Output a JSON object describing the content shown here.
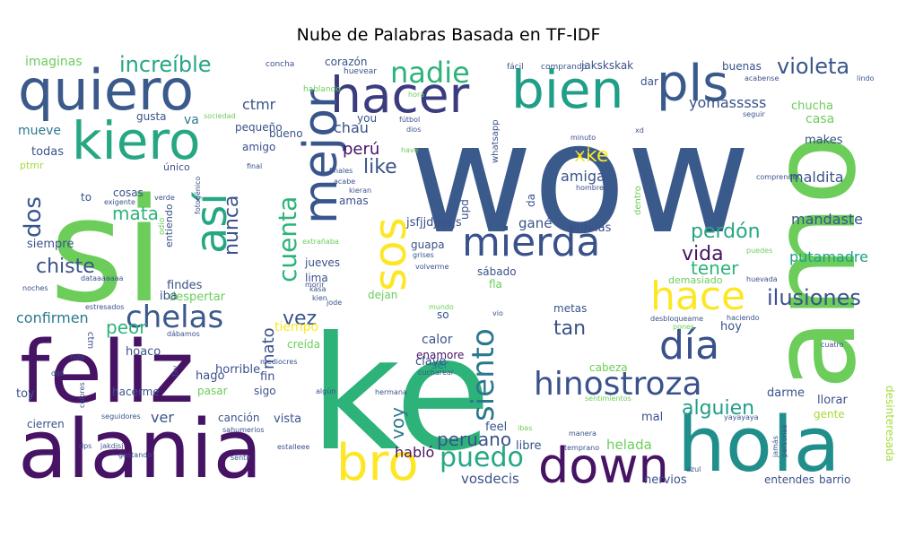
{
  "chart_data": {
    "type": "wordcloud",
    "title": "Nube de Palabras Basada en TF-IDF",
    "background": "#ffffff",
    "words": [
      {
        "text": "wow",
        "size": 170,
        "color": "#3b5a8c"
      },
      {
        "text": "ke",
        "size": 175,
        "color": "#2db37a"
      },
      {
        "text": "si",
        "size": 160,
        "color": "#6ccd5a"
      },
      {
        "text": "amo",
        "size": 130,
        "color": "#6ccd5a"
      },
      {
        "text": "feliz",
        "size": 95,
        "color": "#471365"
      },
      {
        "text": "alania",
        "size": 90,
        "color": "#471365"
      },
      {
        "text": "hola",
        "size": 85,
        "color": "#208f8c"
      },
      {
        "text": "quiero",
        "size": 62,
        "color": "#3b5a8c"
      },
      {
        "text": "kiero",
        "size": 58,
        "color": "#26a784"
      },
      {
        "text": "hacer",
        "size": 55,
        "color": "#3b3b80"
      },
      {
        "text": "bien",
        "size": 58,
        "color": "#1f9e88"
      },
      {
        "text": "pls",
        "size": 56,
        "color": "#3b5a8c"
      },
      {
        "text": "mejor",
        "size": 52,
        "color": "#39568c"
      },
      {
        "text": "así",
        "size": 48,
        "color": "#26a784"
      },
      {
        "text": "sos",
        "size": 50,
        "color": "#fde725"
      },
      {
        "text": "mierda",
        "size": 44,
        "color": "#3a528b"
      },
      {
        "text": "hace",
        "size": 44,
        "color": "#fde725"
      },
      {
        "text": "día",
        "size": 44,
        "color": "#3a528b"
      },
      {
        "text": "bro",
        "size": 56,
        "color": "#fde725"
      },
      {
        "text": "down",
        "size": 54,
        "color": "#471365"
      },
      {
        "text": "hinostroza",
        "size": 36,
        "color": "#3a528b"
      },
      {
        "text": "siento",
        "size": 34,
        "color": "#2a788e"
      },
      {
        "text": "chelas",
        "size": 34,
        "color": "#3b5a8c"
      },
      {
        "text": "nadie",
        "size": 32,
        "color": "#2db37a"
      },
      {
        "text": "increíble",
        "size": 24,
        "color": "#26a784"
      },
      {
        "text": "violeta",
        "size": 24,
        "color": "#39568c"
      },
      {
        "text": "cuenta",
        "size": 28,
        "color": "#2db37a"
      },
      {
        "text": "puedo",
        "size": 30,
        "color": "#26a784"
      },
      {
        "text": "ilusiones",
        "size": 24,
        "color": "#3a528b"
      },
      {
        "text": "dos",
        "size": 26,
        "color": "#39568c"
      },
      {
        "text": "chiste",
        "size": 22,
        "color": "#3a528b"
      },
      {
        "text": "perdón",
        "size": 22,
        "color": "#26a784"
      },
      {
        "text": "vida",
        "size": 22,
        "color": "#471365"
      },
      {
        "text": "tener",
        "size": 20,
        "color": "#2db37a"
      },
      {
        "text": "alguien",
        "size": 22,
        "color": "#1f9e88"
      },
      {
        "text": "peruano",
        "size": 20,
        "color": "#3a528b"
      },
      {
        "text": "like",
        "size": 22,
        "color": "#3a528b"
      },
      {
        "text": "xke",
        "size": 22,
        "color": "#fde725"
      },
      {
        "text": "nunca",
        "size": 22,
        "color": "#3a528b"
      },
      {
        "text": "mata",
        "size": 20,
        "color": "#2db37a"
      },
      {
        "text": "voy",
        "size": 20,
        "color": "#2a788e"
      },
      {
        "text": "tan",
        "size": 22,
        "color": "#3a528b"
      },
      {
        "text": "vez",
        "size": 22,
        "color": "#3a528b"
      },
      {
        "text": "peor",
        "size": 20,
        "color": "#2db37a"
      },
      {
        "text": "confirmen",
        "size": 16,
        "color": "#2a788e"
      },
      {
        "text": "perú",
        "size": 18,
        "color": "#471365"
      },
      {
        "text": "mato",
        "size": 18,
        "color": "#3a528b"
      },
      {
        "text": "mandaste",
        "size": 16,
        "color": "#3a528b"
      },
      {
        "text": "putamadre",
        "size": 16,
        "color": "#1f9e88"
      },
      {
        "text": "maldita",
        "size": 16,
        "color": "#3a528b"
      },
      {
        "text": "yomasssss",
        "size": 16,
        "color": "#3a528b"
      },
      {
        "text": "ctmr",
        "size": 16,
        "color": "#3a528b"
      },
      {
        "text": "amiga",
        "size": 16,
        "color": "#3a528b"
      },
      {
        "text": "chau",
        "size": 16,
        "color": "#3a528b"
      },
      {
        "text": "helada",
        "size": 15,
        "color": "#6ccd5a"
      },
      {
        "text": "habló",
        "size": 16,
        "color": "#471365"
      },
      {
        "text": "vosdecis",
        "size": 15,
        "color": "#3a528b"
      },
      {
        "text": "imaginas",
        "size": 14,
        "color": "#6ccd5a"
      },
      {
        "text": "mueve",
        "size": 14,
        "color": "#2a788e"
      },
      {
        "text": "todas",
        "size": 13,
        "color": "#3a528b"
      },
      {
        "text": "ptmr",
        "size": 11,
        "color": "#a5db36"
      },
      {
        "text": "siempre",
        "size": 13,
        "color": "#3a528b"
      },
      {
        "text": "casa",
        "size": 14,
        "color": "#6ccd5a"
      },
      {
        "text": "chucha",
        "size": 13,
        "color": "#6ccd5a"
      },
      {
        "text": "makes",
        "size": 13,
        "color": "#3a528b"
      },
      {
        "text": "gané",
        "size": 15,
        "color": "#3a528b"
      },
      {
        "text": "jsfjjdjsjsjs",
        "size": 13,
        "color": "#3a528b"
      },
      {
        "text": "guapa",
        "size": 12,
        "color": "#3a528b"
      },
      {
        "text": "jueves",
        "size": 12,
        "color": "#3a528b"
      },
      {
        "text": "lima",
        "size": 12,
        "color": "#3a528b"
      },
      {
        "text": "sábado",
        "size": 12,
        "color": "#3a528b"
      },
      {
        "text": "previas",
        "size": 13,
        "color": "#3a528b"
      },
      {
        "text": "metas",
        "size": 12,
        "color": "#3a528b"
      },
      {
        "text": "calor",
        "size": 14,
        "color": "#3a528b"
      },
      {
        "text": "enamore",
        "size": 12,
        "color": "#471365"
      },
      {
        "text": "clave",
        "size": 13,
        "color": "#3a528b"
      },
      {
        "text": "ser",
        "size": 12,
        "color": "#2a788e"
      },
      {
        "text": "cabeza",
        "size": 12,
        "color": "#6ccd5a"
      },
      {
        "text": "darme",
        "size": 13,
        "color": "#3a528b"
      },
      {
        "text": "llorar",
        "size": 13,
        "color": "#3a528b"
      },
      {
        "text": "gente",
        "size": 12,
        "color": "#a5db36"
      },
      {
        "text": "mal",
        "size": 13,
        "color": "#3a528b"
      },
      {
        "text": "feel",
        "size": 13,
        "color": "#3a528b"
      },
      {
        "text": "libre",
        "size": 13,
        "color": "#3a528b"
      },
      {
        "text": "nervios",
        "size": 13,
        "color": "#3a528b"
      },
      {
        "text": "entendes",
        "size": 12,
        "color": "#3a528b"
      },
      {
        "text": "barrio",
        "size": 12,
        "color": "#3a528b"
      },
      {
        "text": "desinteresada",
        "size": 12,
        "color": "#a5db36"
      },
      {
        "text": "hoy",
        "size": 13,
        "color": "#3a528b"
      },
      {
        "text": "tiempo",
        "size": 14,
        "color": "#fde725"
      },
      {
        "text": "creída",
        "size": 12,
        "color": "#6ccd5a"
      },
      {
        "text": "horrible",
        "size": 13,
        "color": "#3a528b"
      },
      {
        "text": "hoaco",
        "size": 13,
        "color": "#3a528b"
      },
      {
        "text": "hago",
        "size": 13,
        "color": "#3a528b"
      },
      {
        "text": "hacerme",
        "size": 12,
        "color": "#3a528b"
      },
      {
        "text": "pasar",
        "size": 12,
        "color": "#6ccd5a"
      },
      {
        "text": "sigo",
        "size": 12,
        "color": "#3a528b"
      },
      {
        "text": "fin",
        "size": 13,
        "color": "#3a528b"
      },
      {
        "text": "vista",
        "size": 13,
        "color": "#3a528b"
      },
      {
        "text": "canción",
        "size": 12,
        "color": "#3a528b"
      },
      {
        "text": "cierren",
        "size": 12,
        "color": "#3a528b"
      },
      {
        "text": "ver",
        "size": 16,
        "color": "#3a528b"
      },
      {
        "text": "toy",
        "size": 13,
        "color": "#3a528b"
      },
      {
        "text": "despertar",
        "size": 13,
        "color": "#6ccd5a"
      },
      {
        "text": "findes",
        "size": 13,
        "color": "#3a528b"
      },
      {
        "text": "iba",
        "size": 13,
        "color": "#3a528b"
      },
      {
        "text": "dejan",
        "size": 12,
        "color": "#6ccd5a"
      },
      {
        "text": "fla",
        "size": 12,
        "color": "#6ccd5a"
      },
      {
        "text": "so",
        "size": 12,
        "color": "#3a528b"
      },
      {
        "text": "upd",
        "size": 12,
        "color": "#3a528b"
      },
      {
        "text": "da",
        "size": 12,
        "color": "#3a528b"
      },
      {
        "text": "cosas",
        "size": 12,
        "color": "#3a528b"
      },
      {
        "text": "único",
        "size": 11,
        "color": "#3a528b"
      },
      {
        "text": "gusta",
        "size": 12,
        "color": "#3a528b"
      },
      {
        "text": "va",
        "size": 14,
        "color": "#2a788e"
      },
      {
        "text": "amigo",
        "size": 12,
        "color": "#3a528b"
      },
      {
        "text": "bueno",
        "size": 12,
        "color": "#3a528b"
      },
      {
        "text": "corazón",
        "size": 12,
        "color": "#3a528b"
      },
      {
        "text": "pequeño",
        "size": 12,
        "color": "#3a528b"
      },
      {
        "text": "jakskskak",
        "size": 12,
        "color": "#3a528b"
      },
      {
        "text": "buenas",
        "size": 12,
        "color": "#3a528b"
      },
      {
        "text": "dar",
        "size": 12,
        "color": "#3a528b"
      },
      {
        "text": "you",
        "size": 12,
        "color": "#3a528b"
      },
      {
        "text": "amas",
        "size": 12,
        "color": "#3a528b"
      },
      {
        "text": "to",
        "size": 12,
        "color": "#3a528b"
      },
      {
        "text": "demasiado",
        "size": 11,
        "color": "#6ccd5a"
      },
      {
        "text": "entiendo",
        "size": 11,
        "color": "#3a528b"
      },
      {
        "text": "dentro",
        "size": 10,
        "color": "#6ccd5a"
      },
      {
        "text": "whatsapp",
        "size": 10,
        "color": "#3a528b"
      },
      {
        "text": "concha",
        "size": 9,
        "color": "#3a528b"
      },
      {
        "text": "huevear",
        "size": 9,
        "color": "#3a528b"
      },
      {
        "text": "fácil",
        "size": 9,
        "color": "#3a528b"
      },
      {
        "text": "comprando",
        "size": 9,
        "color": "#3a528b"
      },
      {
        "text": "hablando",
        "size": 9,
        "color": "#6ccd5a"
      },
      {
        "text": "sociedad",
        "size": 8,
        "color": "#6ccd5a"
      },
      {
        "text": "hora",
        "size": 8,
        "color": "#6ccd5a"
      },
      {
        "text": "fútbol",
        "size": 8,
        "color": "#3a528b"
      },
      {
        "text": "dios",
        "size": 8,
        "color": "#3a528b"
      },
      {
        "text": "have",
        "size": 8,
        "color": "#6ccd5a"
      },
      {
        "text": "minuto",
        "size": 8,
        "color": "#3a528b"
      },
      {
        "text": "duró",
        "size": 8,
        "color": "#3a528b"
      },
      {
        "text": "xd",
        "size": 8,
        "color": "#3a528b"
      },
      {
        "text": "acabense",
        "size": 8,
        "color": "#3a528b"
      },
      {
        "text": "lindo",
        "size": 8,
        "color": "#3a528b"
      },
      {
        "text": "seguir",
        "size": 8,
        "color": "#3a528b"
      },
      {
        "text": "final",
        "size": 8,
        "color": "#3a528b"
      },
      {
        "text": "finales",
        "size": 8,
        "color": "#3a528b"
      },
      {
        "text": "acabe",
        "size": 8,
        "color": "#3a528b"
      },
      {
        "text": "kieran",
        "size": 8,
        "color": "#3a528b"
      },
      {
        "text": "hombres",
        "size": 8,
        "color": "#3a528b"
      },
      {
        "text": "comprender",
        "size": 8,
        "color": "#3a528b"
      },
      {
        "text": "exigente",
        "size": 8,
        "color": "#3a528b"
      },
      {
        "text": "verde",
        "size": 8,
        "color": "#3a528b"
      },
      {
        "text": "fotogénico",
        "size": 8,
        "color": "#3a528b"
      },
      {
        "text": "odio",
        "size": 9,
        "color": "#6ccd5a"
      },
      {
        "text": "extrañaba",
        "size": 8,
        "color": "#6ccd5a"
      },
      {
        "text": "kasa",
        "size": 8,
        "color": "#3a528b"
      },
      {
        "text": "grises",
        "size": 8,
        "color": "#3a528b"
      },
      {
        "text": "volverme",
        "size": 8,
        "color": "#3a528b"
      },
      {
        "text": "noches",
        "size": 8,
        "color": "#3a528b"
      },
      {
        "text": "dataaaaaaa",
        "size": 8,
        "color": "#3a528b"
      },
      {
        "text": "morir",
        "size": 8,
        "color": "#3a528b"
      },
      {
        "text": "kien",
        "size": 8,
        "color": "#3a528b"
      },
      {
        "text": "jode",
        "size": 8,
        "color": "#3a528b"
      },
      {
        "text": "estresados",
        "size": 8,
        "color": "#3a528b"
      },
      {
        "text": "mundo",
        "size": 8,
        "color": "#6ccd5a"
      },
      {
        "text": "vio",
        "size": 8,
        "color": "#3a528b"
      },
      {
        "text": "huevada",
        "size": 8,
        "color": "#3a528b"
      },
      {
        "text": "puedes",
        "size": 8,
        "color": "#6ccd5a"
      },
      {
        "text": "haciendo",
        "size": 8,
        "color": "#3a528b"
      },
      {
        "text": "desbloqueame",
        "size": 8,
        "color": "#3a528b"
      },
      {
        "text": "pones",
        "size": 8,
        "color": "#6ccd5a"
      },
      {
        "text": "cuatro",
        "size": 8,
        "color": "#3a528b"
      },
      {
        "text": "dábamos",
        "size": 8,
        "color": "#3a528b"
      },
      {
        "text": "hizo",
        "size": 8,
        "color": "#3a528b"
      },
      {
        "text": "dijo",
        "size": 8,
        "color": "#3a528b"
      },
      {
        "text": "fav",
        "size": 8,
        "color": "#3a528b"
      },
      {
        "text": "mediocres",
        "size": 8,
        "color": "#3a528b"
      },
      {
        "text": "cucharear",
        "size": 8,
        "color": "#3a528b"
      },
      {
        "text": "colores",
        "size": 8,
        "color": "#3a528b"
      },
      {
        "text": "algún",
        "size": 8,
        "color": "#3a528b"
      },
      {
        "text": "hermana",
        "size": 8,
        "color": "#3a528b"
      },
      {
        "text": "sentimientos",
        "size": 8,
        "color": "#6ccd5a"
      },
      {
        "text": "seguidores",
        "size": 8,
        "color": "#3a528b"
      },
      {
        "text": "sahumerios",
        "size": 8,
        "color": "#3a528b"
      },
      {
        "text": "ibas",
        "size": 8,
        "color": "#6ccd5a"
      },
      {
        "text": "manera",
        "size": 8,
        "color": "#3a528b"
      },
      {
        "text": "temprano",
        "size": 8,
        "color": "#3a528b"
      },
      {
        "text": "yayayaya",
        "size": 8,
        "color": "#3a528b"
      },
      {
        "text": "jakdjsj",
        "size": 8,
        "color": "#3a528b"
      },
      {
        "text": "dps",
        "size": 8,
        "color": "#3a528b"
      },
      {
        "text": "estalleee",
        "size": 8,
        "color": "#3a528b"
      },
      {
        "text": "gastando",
        "size": 8,
        "color": "#3a528b"
      },
      {
        "text": "sentir",
        "size": 8,
        "color": "#3a528b"
      },
      {
        "text": "azul",
        "size": 8,
        "color": "#3a528b"
      },
      {
        "text": "jamás",
        "size": 8,
        "color": "#3a528b"
      },
      {
        "text": "personas",
        "size": 8,
        "color": "#3a528b"
      },
      {
        "text": "ctm",
        "size": 10,
        "color": "#3a528b"
      }
    ]
  }
}
